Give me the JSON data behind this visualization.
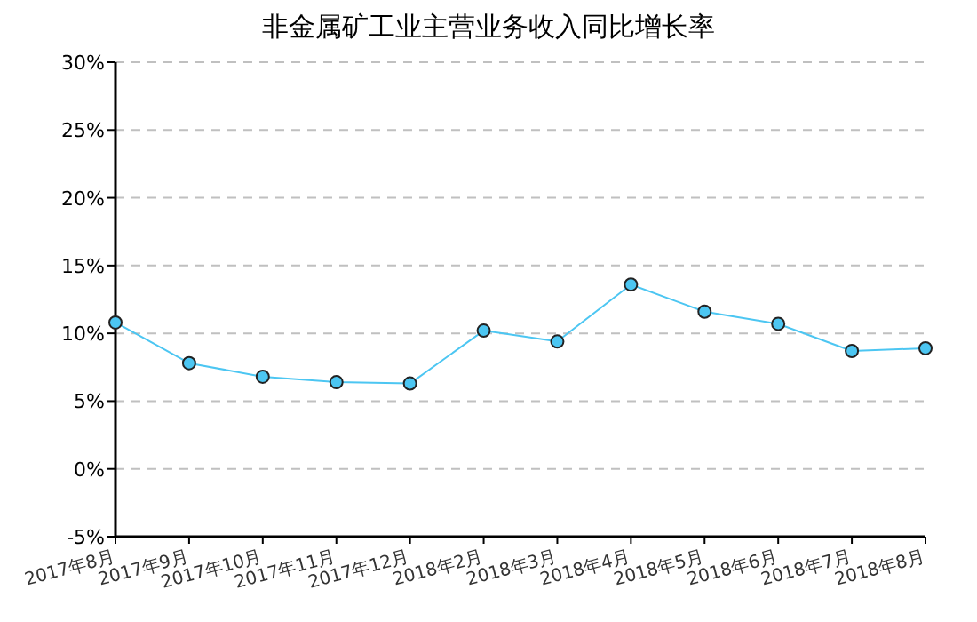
{
  "chart_data": {
    "type": "line",
    "title": "非金属矿工业主营业务收入同比增长率",
    "categories": [
      "2017年8月",
      "2017年9月",
      "2017年10月",
      "2017年11月",
      "2017年12月",
      "2018年2月",
      "2018年3月",
      "2018年4月",
      "2018年5月",
      "2018年6月",
      "2018年7月",
      "2018年8月"
    ],
    "series": [
      {
        "color": "#4cc6f2",
        "values": [
          10.8,
          7.8,
          6.8,
          6.4,
          6.3,
          10.2,
          9.4,
          13.6,
          11.6,
          10.7,
          8.7,
          8.9
        ]
      }
    ],
    "ylim": [
      -5,
      30
    ],
    "yticks": [
      {
        "value": -5,
        "label": "-5%"
      },
      {
        "value": 0,
        "label": "0%"
      },
      {
        "value": 5,
        "label": "5%"
      },
      {
        "value": 10,
        "label": "10%"
      },
      {
        "value": 15,
        "label": "15%"
      },
      {
        "value": 20,
        "label": "20%"
      },
      {
        "value": 25,
        "label": "25%"
      },
      {
        "value": 30,
        "label": "30%"
      }
    ],
    "grid": "y",
    "marker": "circle",
    "line_style": "solid"
  }
}
